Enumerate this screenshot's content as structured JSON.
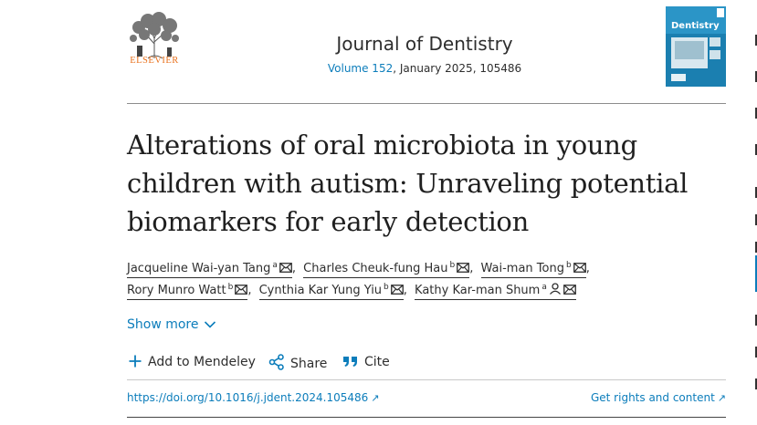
{
  "header": {
    "publisher": "ELSEVIER",
    "journal_title": "Journal of Dentistry",
    "issue_prefix": "Volume 152",
    "issue_suffix": ", January 2025, 105486",
    "cover_title": "Dentistry"
  },
  "article": {
    "title_lines": [
      "Alterations of oral microbiota in young",
      "children with autism: Unraveling potential",
      "biomarkers for early detection"
    ],
    "authors": [
      {
        "name": "Jacqueline Wai-yan Tang",
        "sup": "a"
      },
      {
        "name": "Charles Cheuk-fung Hau",
        "sup": "b"
      },
      {
        "name": "Wai-man Tong",
        "sup": "b"
      },
      {
        "name": "Rory Munro Watt",
        "sup": "b"
      },
      {
        "name": "Cynthia Kar Yung Yiu",
        "sup": "b"
      },
      {
        "name": "Kathy Kar-man Shum",
        "sup": "a"
      }
    ],
    "show_more": "Show more"
  },
  "actions": {
    "mendeley": "Add to Mendeley",
    "share": "Share",
    "cite": "Cite"
  },
  "links": {
    "doi": "https://doi.org/10.1016/j.jdent.2024.105486",
    "rights": "Get rights and content"
  },
  "colors": {
    "link": "#0c7dbb",
    "publisher_orange": "#e9711c",
    "text": "#1f1f1f"
  }
}
